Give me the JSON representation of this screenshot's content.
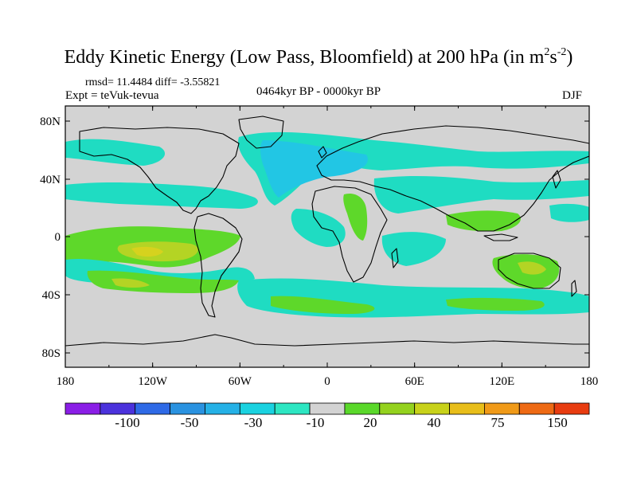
{
  "title": {
    "main": "Eddy Kinetic Energy (Low Pass, Bloomfield) at 200 hPa (in m",
    "sup1": "2",
    "mid": "s",
    "sup2": "-2",
    "end": ")"
  },
  "stats": "rmsd= 11.4484 diff= -3.55821",
  "experiment": "Expt = teVuk-tevua",
  "period": "0464kyr BP - 0000kyr BP",
  "season": "DJF",
  "map": {
    "lat_ticks": [
      "80N",
      "40N",
      "0",
      "40S",
      "80S"
    ],
    "lon_ticks": [
      "180",
      "120W",
      "60W",
      "0",
      "60E",
      "120E",
      "180"
    ],
    "background_color": "#d3d3d3"
  },
  "colorbar": {
    "colors": [
      "#8a1ee6",
      "#4b32dc",
      "#2f6ae6",
      "#2a92e0",
      "#25b1e6",
      "#1ad2e0",
      "#2de6c2",
      "#d3d3d3",
      "#5ad82a",
      "#94d21e",
      "#c8d21a",
      "#e8be1a",
      "#f09a18",
      "#ee6a14",
      "#e83c10"
    ],
    "labels": [
      "-100",
      "-50",
      "-30",
      "-10",
      "20",
      "40",
      "75",
      "150"
    ]
  },
  "legend_colors": {
    "teal": "#1fdcc2",
    "cyan": "#22c6e4",
    "green": "#5ed82a",
    "yellowgreen": "#b4d424",
    "gold": "#d6d21e"
  }
}
